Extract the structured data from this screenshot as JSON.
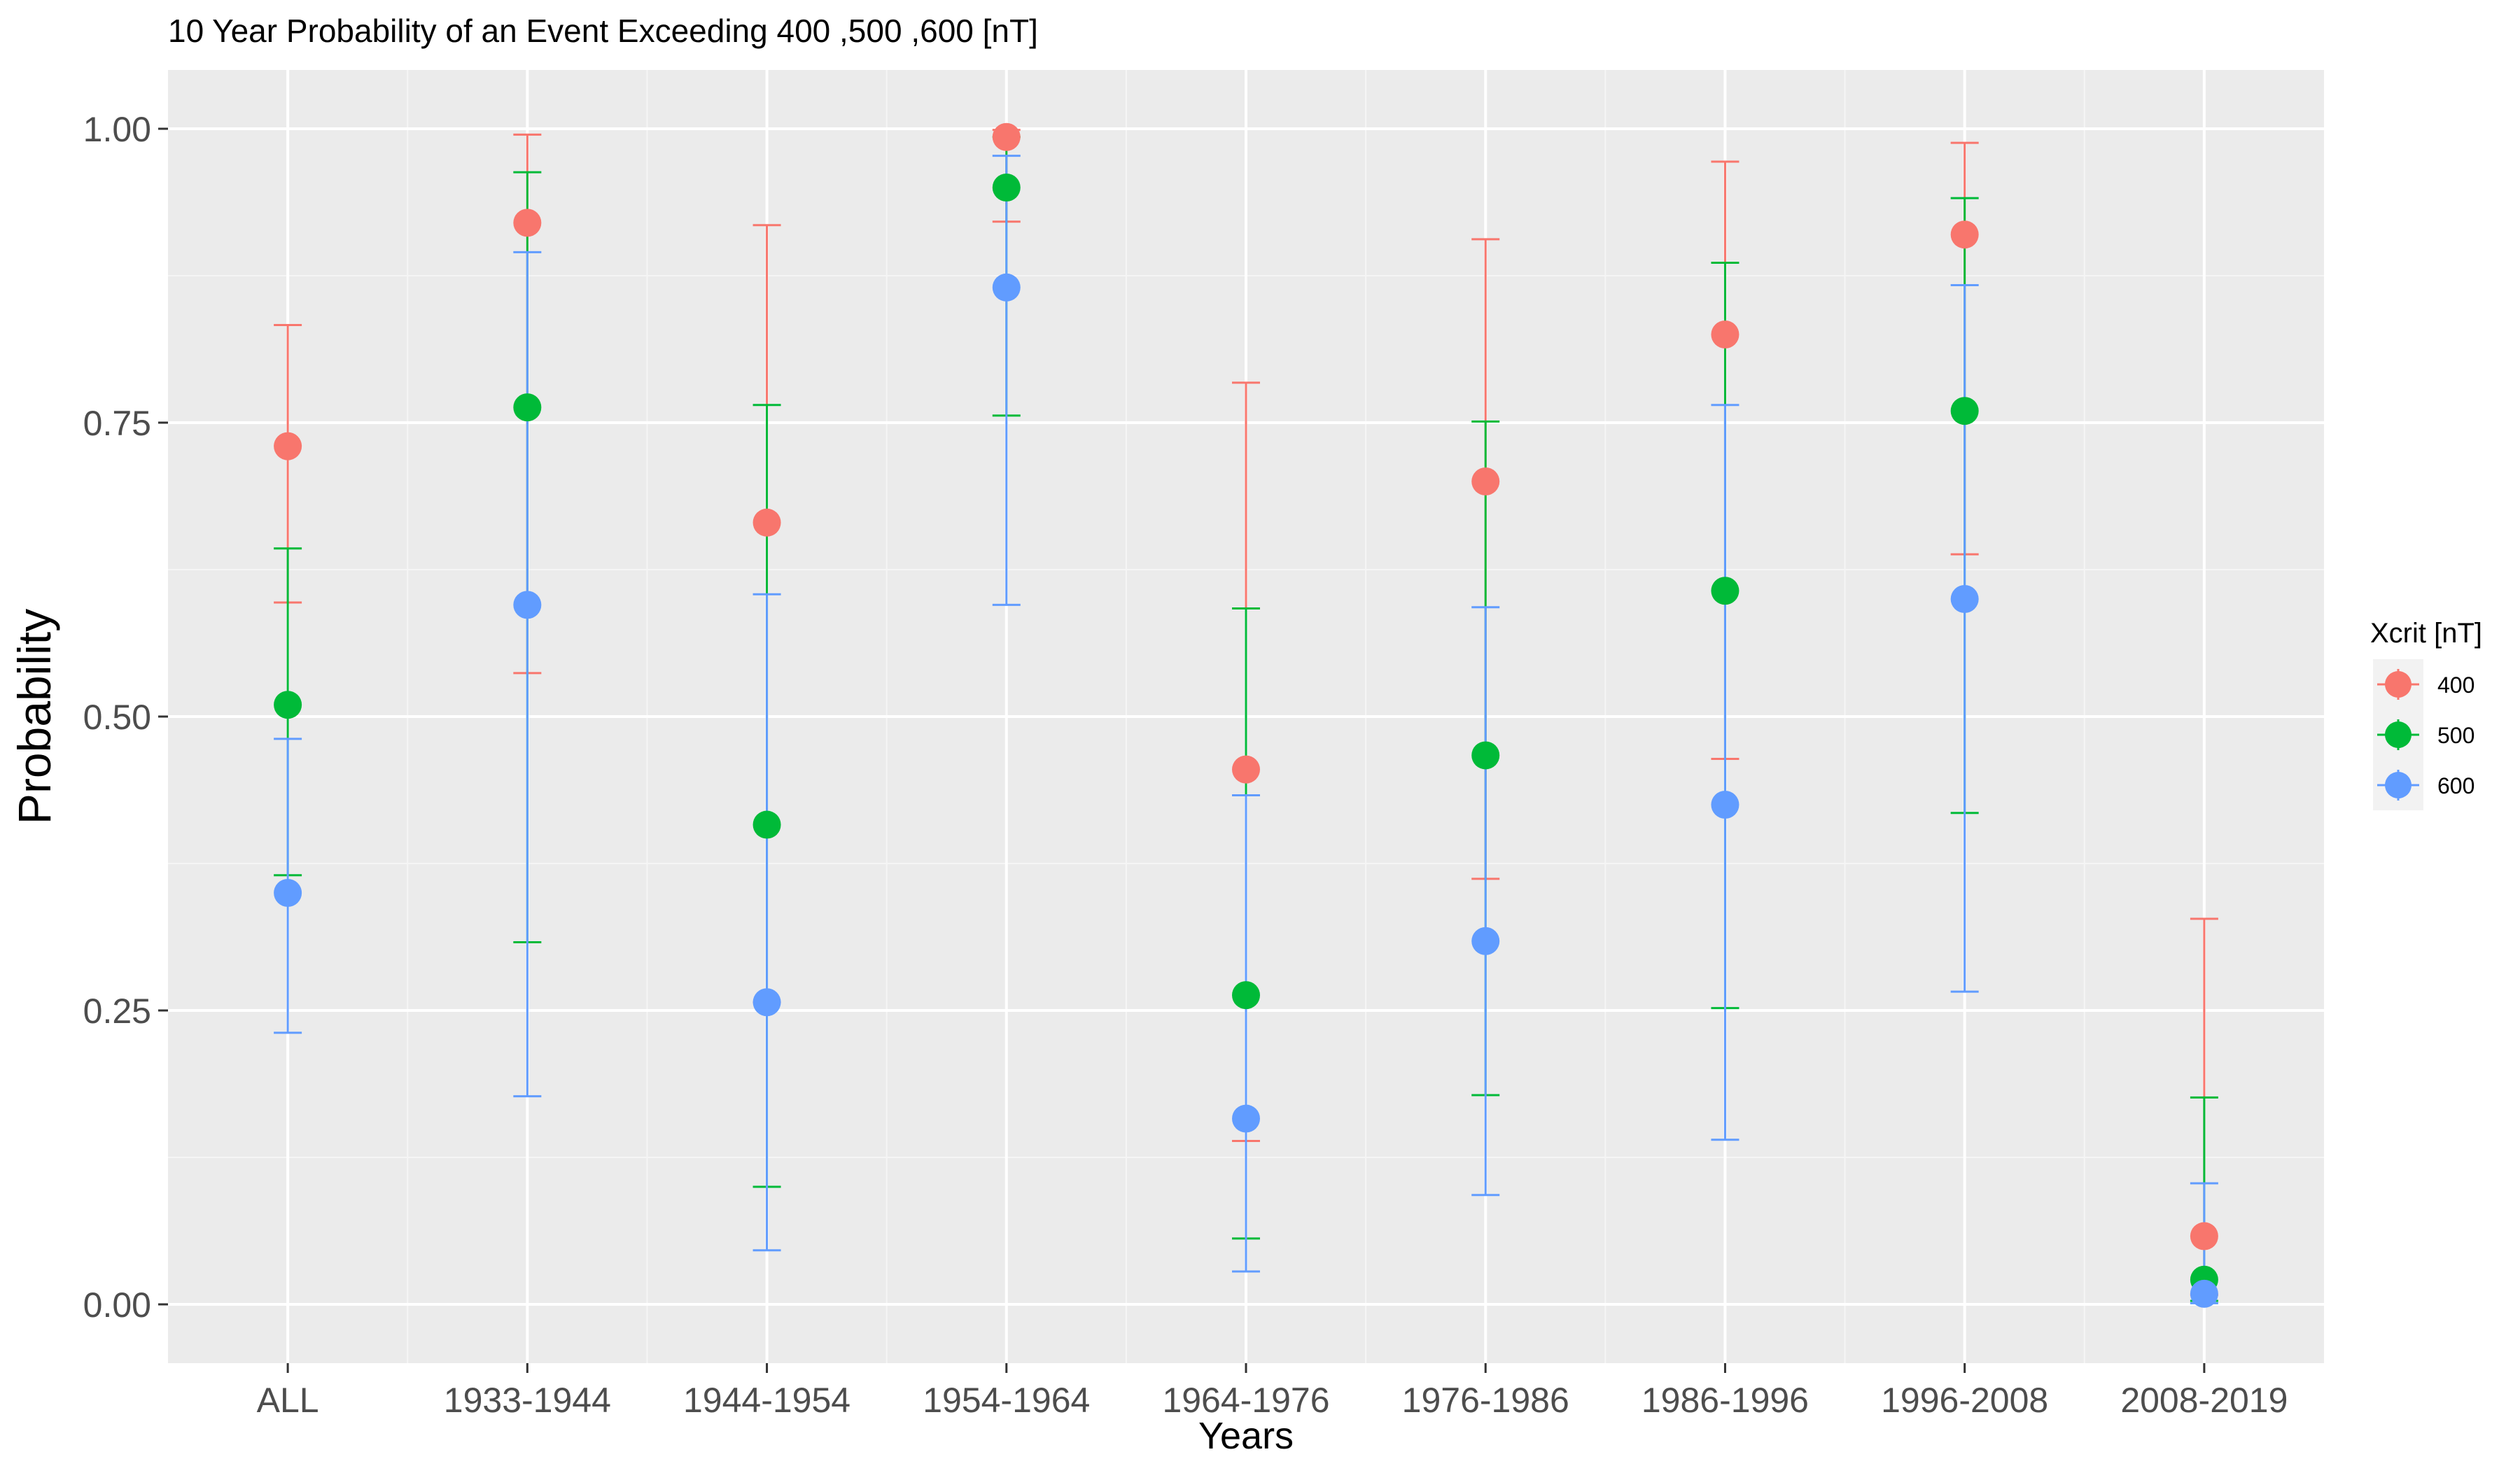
{
  "chart_data": {
    "type": "scatter",
    "title": "10 Year Probability of an Event Exceeding 400 ,500 ,600 [nT]",
    "xlabel": "Years",
    "ylabel": "Probability",
    "categories": [
      "ALL",
      "1933-1944",
      "1944-1954",
      "1954-1964",
      "1964-1976",
      "1976-1986",
      "1986-1996",
      "1996-2008",
      "2008-2019"
    ],
    "ylim": [
      -0.05,
      1.05
    ],
    "yticks": [
      0,
      0.25,
      0.5,
      0.75,
      1
    ],
    "ytick_labels": [
      "0.00",
      "0.25",
      "0.50",
      "0.75",
      "1.00"
    ],
    "grid": true,
    "legend": {
      "title": "Xcrit [nT]",
      "placement": "right"
    },
    "series": [
      {
        "name": "400",
        "color": "#F8766D",
        "values": [
          0.73,
          0.92,
          0.665,
          0.993,
          0.455,
          0.7,
          0.825,
          0.91,
          0.058
        ],
        "lower": [
          0.597,
          0.537,
          0.257,
          0.921,
          0.139,
          0.362,
          0.464,
          0.638,
          0.008
        ],
        "upper": [
          0.833,
          0.995,
          0.918,
          0.999,
          0.784,
          0.906,
          0.972,
          0.988,
          0.328
        ]
      },
      {
        "name": "500",
        "color": "#00BA38",
        "values": [
          0.51,
          0.763,
          0.408,
          0.95,
          0.263,
          0.467,
          0.607,
          0.76,
          0.021
        ],
        "lower": [
          0.365,
          0.308,
          0.1,
          0.756,
          0.056,
          0.178,
          0.252,
          0.418,
          0.003
        ],
        "upper": [
          0.643,
          0.963,
          0.765,
          0.993,
          0.592,
          0.751,
          0.886,
          0.941,
          0.176
        ]
      },
      {
        "name": "600",
        "color": "#619CFF",
        "values": [
          0.35,
          0.595,
          0.257,
          0.865,
          0.158,
          0.309,
          0.425,
          0.6,
          0.009
        ],
        "lower": [
          0.231,
          0.177,
          0.046,
          0.595,
          0.028,
          0.093,
          0.14,
          0.266,
          0.001
        ],
        "upper": [
          0.481,
          0.895,
          0.604,
          0.977,
          0.433,
          0.593,
          0.765,
          0.867,
          0.103
        ]
      }
    ]
  }
}
